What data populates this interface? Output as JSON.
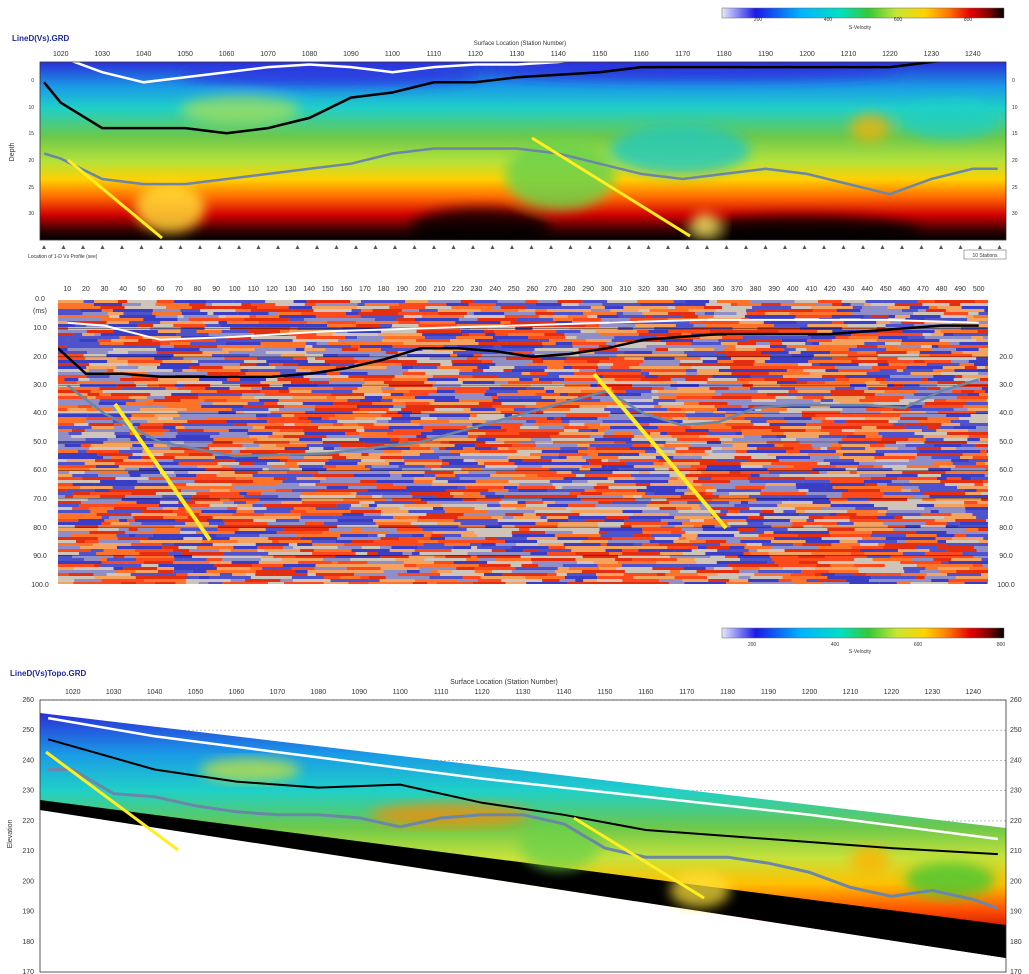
{
  "colors": {
    "velocity_ramp": [
      "#e8e8ff",
      "#1a1ae6",
      "#00b4ff",
      "#00e0c0",
      "#37c837",
      "#c8e632",
      "#ffd200",
      "#ff7a00",
      "#e60000",
      "#8c0000",
      "#000000"
    ],
    "seismic_ramp": [
      "#1a2bd6",
      "#7e8ad8",
      "#c9c9c9",
      "#f3a15e",
      "#ff4a10"
    ],
    "black_horizon": "#000000",
    "grey_horizon": "#6b87a8",
    "surface_line": "#ffffff",
    "fault_line": "#ffee22",
    "title_color": "#1f2a9c"
  },
  "panel_top": {
    "title": "LineD(Vs).GRD",
    "axis_title": "Surface Location (Station Number)",
    "ylabel": "Depth",
    "x_ticks": [
      "1020",
      "1030",
      "1040",
      "1050",
      "1060",
      "1070",
      "1080",
      "1090",
      "1100",
      "1110",
      "1120",
      "1130",
      "1140",
      "1150",
      "1160",
      "1170",
      "1180",
      "1190",
      "1200",
      "1210",
      "1220",
      "1230",
      "1240"
    ],
    "y_ticks_left": [
      "0",
      "10",
      "15",
      "20",
      "25",
      "30"
    ],
    "y_ticks_right": [
      "0",
      "10",
      "15",
      "20",
      "25",
      "30"
    ],
    "colorbar_ticks": [
      "200",
      "400",
      "600",
      "800"
    ],
    "colorbar_label": "S-Velocity",
    "footnote": "Location of 1-D Vs Profile (see)",
    "scale_note": "10 Stations"
  },
  "panel_middle": {
    "x_ticks": [
      "10",
      "20",
      "30",
      "40",
      "50",
      "60",
      "70",
      "80",
      "90",
      "100",
      "110",
      "120",
      "130",
      "140",
      "150",
      "160",
      "170",
      "180",
      "190",
      "200",
      "210",
      "220",
      "230",
      "240",
      "250",
      "260",
      "270",
      "280",
      "290",
      "300",
      "310",
      "320",
      "330",
      "340",
      "350",
      "360",
      "370",
      "380",
      "390",
      "400",
      "410",
      "420",
      "430",
      "440",
      "450",
      "460",
      "470",
      "480",
      "490",
      "500"
    ],
    "y_ticks_left": [
      "0.0",
      "(ms)",
      "10.0",
      "20.0",
      "30.0",
      "40.0",
      "50.0",
      "60.0",
      "70.0",
      "80.0",
      "90.0",
      "100.0"
    ],
    "y_ticks_right": [
      "20.0",
      "30.0",
      "40.0",
      "50.0",
      "60.0",
      "70.0",
      "80.0",
      "90.0",
      "100.0"
    ]
  },
  "panel_bottom": {
    "title": "LineD(Vs)Topo.GRD",
    "axis_title": "Surface Location (Station Number)",
    "ylabel": "Elevation",
    "x_ticks": [
      "1020",
      "1030",
      "1040",
      "1050",
      "1060",
      "1070",
      "1080",
      "1090",
      "1100",
      "1110",
      "1120",
      "1130",
      "1140",
      "1150",
      "1160",
      "1170",
      "1180",
      "1190",
      "1200",
      "1210",
      "1220",
      "1230",
      "1240"
    ],
    "y_ticks_left": [
      "260",
      "250",
      "240",
      "230",
      "220",
      "210",
      "200",
      "190",
      "180",
      "170"
    ],
    "y_ticks_right": [
      "260",
      "250",
      "240",
      "230",
      "220",
      "210",
      "200",
      "190",
      "180",
      "170"
    ],
    "colorbar_ticks": [
      "200",
      "400",
      "600",
      "800"
    ],
    "colorbar_label": "S-Velocity"
  },
  "chart_data": [
    {
      "type": "heatmap",
      "title": "LineD(Vs).GRD",
      "xlabel": "Surface Location (Station Number)",
      "ylabel": "Depth",
      "xlim": [
        1015,
        1248
      ],
      "ylim": [
        0,
        35
      ],
      "colorbar": {
        "label": "S-Velocity",
        "ticks": [
          200,
          400,
          600,
          800
        ]
      },
      "series": [
        {
          "x": [
            1016,
            1020,
            1030,
            1040,
            1050,
            1060,
            1070,
            1080,
            1090,
            1100,
            1110,
            1120,
            1130,
            1140,
            1150,
            1160,
            1170,
            1180,
            1190,
            1200,
            1210,
            1220,
            1230,
            1240,
            1246
          ],
          "y": [
            -2,
            -1,
            2,
            4,
            3,
            2,
            1,
            0.5,
            1,
            2,
            1,
            0.5,
            0.5,
            0,
            -1,
            -1,
            -2,
            -3,
            -3,
            -3,
            -3,
            -3,
            -3,
            -3,
            -3
          ]
        },
        {
          "x": [
            1016,
            1020,
            1030,
            1040,
            1050,
            1060,
            1070,
            1080,
            1090,
            1100,
            1110,
            1120,
            1130,
            1140,
            1150,
            1160,
            1170,
            1180,
            1190,
            1200,
            1210,
            1220,
            1230,
            1240,
            1246
          ],
          "y": [
            4,
            8,
            13,
            13,
            13,
            14,
            13,
            11,
            7,
            6,
            4,
            4,
            3,
            2.5,
            2,
            1,
            1,
            1,
            1,
            1,
            1,
            1,
            0,
            -1,
            -1
          ]
        },
        {
          "x": [
            1016,
            1020,
            1030,
            1040,
            1050,
            1060,
            1070,
            1080,
            1090,
            1100,
            1110,
            1120,
            1130,
            1140,
            1150,
            1160,
            1170,
            1180,
            1190,
            1200,
            1210,
            1220,
            1230,
            1240,
            1246
          ],
          "y": [
            18,
            19,
            23,
            24,
            24,
            23,
            22,
            21,
            20,
            18,
            17,
            17,
            17,
            18,
            20,
            22,
            23,
            22,
            21,
            22,
            24,
            26,
            23,
            21,
            21
          ]
        }
      ]
    },
    {
      "type": "heatmap",
      "xlabel": "",
      "ylabel": "(ms)",
      "xlim": [
        5,
        505
      ],
      "ylim": [
        0,
        100
      ],
      "series": [
        {
          "x": [
            10,
            30,
            60,
            100,
            150,
            200,
            250,
            300,
            350,
            400,
            450,
            500
          ],
          "y": [
            8,
            9,
            14,
            13,
            11,
            10,
            9,
            8,
            7,
            7,
            7,
            8
          ]
        },
        {
          "x": [
            5,
            20,
            40,
            60,
            80,
            100,
            120,
            140,
            160,
            180,
            200,
            220,
            240,
            260,
            280,
            300,
            320,
            340,
            360,
            380,
            400,
            420,
            440,
            460,
            480,
            500
          ],
          "y": [
            17,
            26,
            26,
            27,
            27,
            27,
            27,
            26,
            24,
            21,
            17,
            17,
            18,
            20,
            19,
            17,
            14,
            13,
            12,
            12,
            12,
            12,
            11,
            10,
            9,
            9
          ]
        },
        {
          "x": [
            10,
            30,
            60,
            100,
            150,
            200,
            250,
            300,
            320,
            340,
            360,
            380,
            400,
            420,
            440,
            460,
            480,
            500
          ],
          "y": [
            30,
            40,
            50,
            55,
            54,
            50,
            41,
            32,
            40,
            44,
            43,
            38,
            37,
            37,
            37,
            38,
            32,
            28
          ]
        }
      ]
    },
    {
      "type": "heatmap",
      "title": "LineD(Vs)Topo.GRD",
      "xlabel": "Surface Location (Station Number)",
      "ylabel": "Elevation",
      "xlim": [
        1012,
        1248
      ],
      "ylim": [
        170,
        260
      ],
      "colorbar": {
        "label": "S-Velocity",
        "ticks": [
          200,
          400,
          600,
          800
        ]
      },
      "series": [
        {
          "x": [
            1014,
            1040,
            1080,
            1120,
            1160,
            1200,
            1246
          ],
          "y": [
            254,
            248,
            241,
            234,
            228,
            222,
            214
          ]
        },
        {
          "x": [
            1014,
            1040,
            1060,
            1080,
            1100,
            1120,
            1140,
            1160,
            1180,
            1200,
            1220,
            1246
          ],
          "y": [
            247,
            237,
            233,
            231,
            232,
            226,
            222,
            217,
            215,
            213,
            211,
            209
          ]
        },
        {
          "x": [
            1014,
            1020,
            1030,
            1040,
            1050,
            1060,
            1070,
            1080,
            1090,
            1100,
            1110,
            1120,
            1130,
            1140,
            1150,
            1160,
            1170,
            1180,
            1190,
            1200,
            1210,
            1220,
            1230,
            1240,
            1246
          ],
          "y": [
            237,
            237,
            229,
            228,
            225,
            223,
            222,
            222,
            221,
            218,
            221,
            222,
            222,
            219,
            211,
            208,
            208,
            208,
            206,
            203,
            198,
            195,
            197,
            194,
            191
          ]
        }
      ]
    }
  ]
}
